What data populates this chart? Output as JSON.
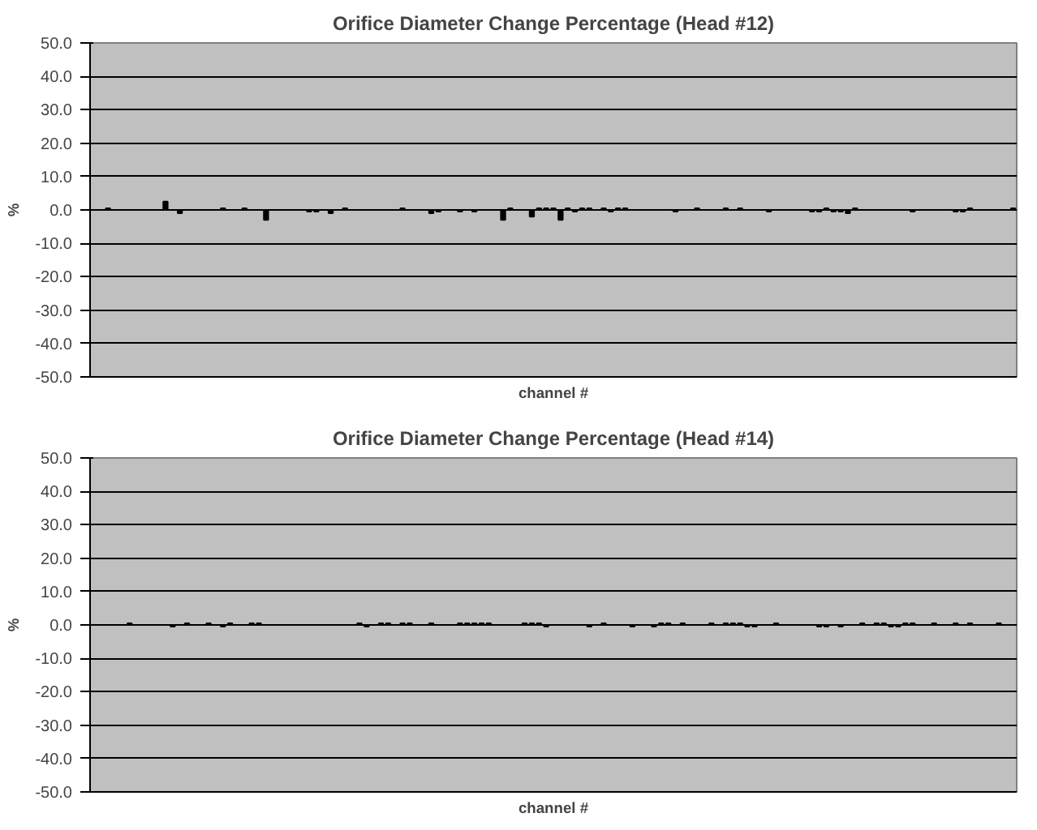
{
  "chart_data": [
    {
      "type": "bar",
      "title": "Orifice Diameter Change Percentage (Head #12)",
      "xlabel": "channel #",
      "ylabel": "%",
      "categories": [
        null,
        null,
        null,
        null,
        null,
        null,
        null,
        null,
        null,
        null,
        null,
        null,
        null,
        null,
        null,
        null,
        null,
        null,
        null,
        null,
        null,
        null,
        null,
        null,
        null,
        null,
        null,
        null,
        null,
        null,
        null,
        null,
        null,
        null,
        null,
        null,
        null,
        null,
        null,
        null,
        null,
        null,
        null,
        null,
        null,
        null,
        null,
        null,
        null,
        null,
        null,
        null,
        null,
        null,
        null,
        null,
        null,
        null,
        null,
        null,
        null,
        null,
        null,
        null,
        null,
        null,
        null,
        null,
        null,
        null,
        null,
        null,
        null,
        null,
        null,
        null,
        null,
        null,
        null,
        null,
        null,
        null,
        null,
        null,
        null,
        null,
        null,
        null,
        null,
        null,
        null,
        null,
        null,
        null,
        null,
        null,
        null,
        null,
        null,
        null,
        null,
        null,
        null,
        null,
        null,
        null,
        null,
        null,
        null,
        null,
        null,
        null,
        null,
        null,
        null,
        null,
        null,
        null,
        null,
        null,
        null,
        null,
        null,
        null,
        null,
        null,
        null,
        null,
        null
      ],
      "values": [
        0,
        0,
        0.5,
        0,
        0,
        0,
        0,
        0,
        0,
        0,
        2.5,
        0,
        -1,
        0,
        0,
        0,
        0,
        0,
        0.5,
        0,
        0,
        0.5,
        0,
        0,
        -3,
        0,
        0,
        0,
        0,
        0,
        -0.5,
        -0.5,
        0,
        -1,
        0,
        0.5,
        0,
        0,
        0,
        0,
        0,
        0,
        0,
        0.5,
        0,
        0,
        0,
        -1,
        -0.5,
        0,
        0,
        -0.5,
        0,
        -0.5,
        0,
        0,
        0,
        -3,
        0.5,
        0,
        0,
        -2,
        0.5,
        0.5,
        0.5,
        -3,
        0.5,
        -0.5,
        0.5,
        0.5,
        0,
        0.5,
        -0.5,
        0.5,
        0.5,
        0,
        0,
        0,
        0,
        0,
        0,
        -0.5,
        0,
        0,
        0.5,
        0,
        0,
        0,
        0.5,
        0,
        0.5,
        0,
        0,
        0,
        -0.5,
        0,
        0,
        0,
        0,
        0,
        -0.5,
        -0.5,
        0.5,
        -0.5,
        -0.5,
        -1,
        0.5,
        0,
        0,
        0,
        0,
        0,
        0,
        0,
        -0.5,
        0,
        0,
        0,
        0,
        0,
        -0.5,
        -0.5,
        0.5,
        0,
        0,
        0,
        0,
        0,
        0.5
      ],
      "color": "#000000",
      "ylim": [
        -50,
        50
      ],
      "yticks": [
        {
          "value": -50,
          "label": "-50.0"
        },
        {
          "value": -40,
          "label": "-40.0"
        },
        {
          "value": -30,
          "label": "-30.0"
        },
        {
          "value": -20,
          "label": "-20.0"
        },
        {
          "value": -10,
          "label": "-10.0"
        },
        {
          "value": 0,
          "label": "0.0"
        },
        {
          "value": 10,
          "label": "10.0"
        },
        {
          "value": 20,
          "label": "20.0"
        },
        {
          "value": 30,
          "label": "30.0"
        },
        {
          "value": 40,
          "label": "40.0"
        },
        {
          "value": 50,
          "label": "50.0"
        }
      ],
      "grid": "y"
    },
    {
      "type": "bar",
      "title": "Orifice Diameter Change Percentage (Head #14)",
      "xlabel": "channel #",
      "ylabel": "%",
      "categories": [
        null,
        null,
        null,
        null,
        null,
        null,
        null,
        null,
        null,
        null,
        null,
        null,
        null,
        null,
        null,
        null,
        null,
        null,
        null,
        null,
        null,
        null,
        null,
        null,
        null,
        null,
        null,
        null,
        null,
        null,
        null,
        null,
        null,
        null,
        null,
        null,
        null,
        null,
        null,
        null,
        null,
        null,
        null,
        null,
        null,
        null,
        null,
        null,
        null,
        null,
        null,
        null,
        null,
        null,
        null,
        null,
        null,
        null,
        null,
        null,
        null,
        null,
        null,
        null,
        null,
        null,
        null,
        null,
        null,
        null,
        null,
        null,
        null,
        null,
        null,
        null,
        null,
        null,
        null,
        null,
        null,
        null,
        null,
        null,
        null,
        null,
        null,
        null,
        null,
        null,
        null,
        null,
        null,
        null,
        null,
        null,
        null,
        null,
        null,
        null,
        null,
        null,
        null,
        null,
        null,
        null,
        null,
        null,
        null,
        null,
        null,
        null,
        null,
        null,
        null,
        null,
        null,
        null,
        null,
        null,
        null,
        null,
        null,
        null,
        null,
        null,
        null,
        null,
        null
      ],
      "values": [
        0,
        0,
        0,
        0,
        0,
        0.5,
        0,
        0,
        0,
        0,
        0,
        -0.5,
        0,
        0.5,
        0,
        0,
        0.5,
        0,
        -0.5,
        0.5,
        0,
        0,
        0.5,
        0.5,
        0,
        0,
        0,
        0,
        0,
        0,
        0,
        0,
        0,
        0,
        0,
        0,
        0,
        0.5,
        -0.5,
        0,
        0.5,
        0.5,
        0,
        0.5,
        0.5,
        0,
        0,
        0.5,
        0,
        0,
        0,
        0.5,
        0.5,
        0.5,
        0.5,
        0.5,
        0,
        0,
        0,
        0,
        0.5,
        0.5,
        0.5,
        -0.5,
        0,
        0,
        0,
        0,
        0,
        -0.5,
        0,
        0.5,
        0,
        0,
        0,
        -0.5,
        0,
        0,
        -0.5,
        0.5,
        0.5,
        0,
        0.5,
        0,
        0,
        0,
        0.5,
        0,
        0.5,
        0.5,
        0.5,
        -0.5,
        -0.5,
        0,
        0,
        0.5,
        0,
        0,
        0,
        0,
        0,
        -0.5,
        -0.5,
        0,
        -0.5,
        0,
        0,
        0.5,
        0,
        0.5,
        0.5,
        -0.5,
        -0.5,
        0.5,
        0.5,
        0,
        0,
        0.5,
        0,
        0,
        0.5,
        0,
        0.5,
        0,
        0,
        0,
        0.5,
        0,
        0
      ],
      "color": "#000000",
      "ylim": [
        -50,
        50
      ],
      "yticks": [
        {
          "value": -50,
          "label": "-50.0"
        },
        {
          "value": -40,
          "label": "-40.0"
        },
        {
          "value": -30,
          "label": "-30.0"
        },
        {
          "value": -20,
          "label": "-20.0"
        },
        {
          "value": -10,
          "label": "-10.0"
        },
        {
          "value": 0,
          "label": "0.0"
        },
        {
          "value": 10,
          "label": "10.0"
        },
        {
          "value": 20,
          "label": "20.0"
        },
        {
          "value": 30,
          "label": "30.0"
        },
        {
          "value": 40,
          "label": "40.0"
        },
        {
          "value": 50,
          "label": "50.0"
        }
      ],
      "grid": "y"
    }
  ]
}
